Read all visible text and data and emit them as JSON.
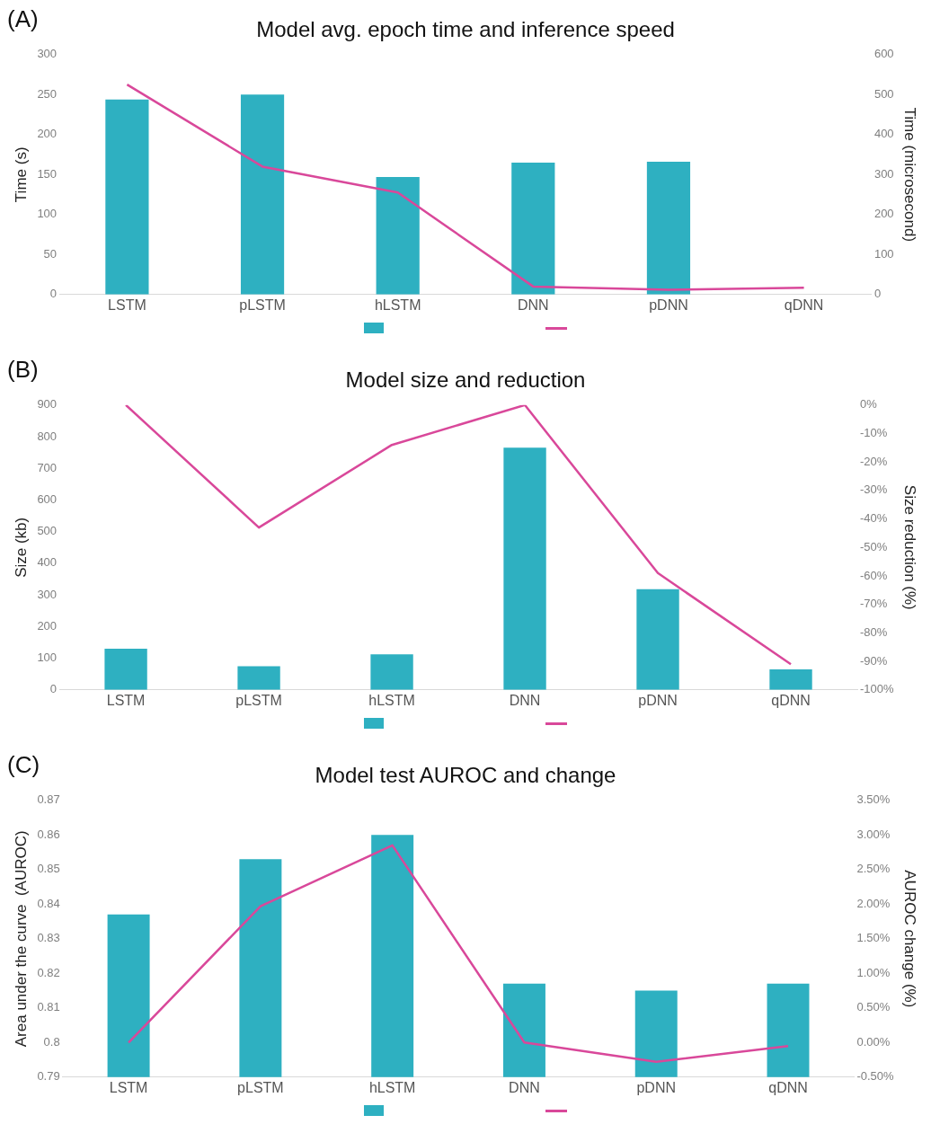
{
  "chart_data": [
    {
      "type": "bar",
      "title": "Model avg. epoch time and inference speed",
      "annotations": [
        "(A)"
      ],
      "ylabel": "Time (s)",
      "y2label": "Time (microsecond)",
      "categories": [
        "LSTM",
        "pLSTM",
        "hLSTM",
        "DNN",
        "pDNN",
        "qDNN"
      ],
      "series": [
        {
          "color": "#2eb0c1",
          "values": [
            244,
            250,
            147,
            165,
            166,
            null
          ]
        },
        {
          "type": "line",
          "axis": "y2",
          "color": "#d9489a",
          "values": [
            525,
            320,
            255,
            20,
            12,
            17
          ]
        }
      ],
      "ylim": [
        0,
        300
      ],
      "yticks": [
        0,
        50,
        100,
        150,
        200,
        250,
        300
      ],
      "y2lim": [
        0,
        600
      ],
      "y2ticks": [
        0,
        100,
        200,
        300,
        400,
        500,
        600
      ],
      "grid": false,
      "marker": "none",
      "line_style": "solid"
    },
    {
      "type": "bar",
      "title": "Model size and reduction",
      "annotations": [
        "(B)"
      ],
      "ylabel": "Size (kb)",
      "y2label": "Size reduction (%)",
      "categories": [
        "LSTM",
        "pLSTM",
        "hLSTM",
        "DNN",
        "pDNN",
        "qDNN"
      ],
      "series": [
        {
          "color": "#2eb0c1",
          "values": [
            130,
            75,
            112,
            765,
            318,
            65
          ]
        },
        {
          "type": "line",
          "axis": "y2",
          "color": "#d9489a",
          "values": [
            0,
            -43,
            -14,
            0,
            -59,
            -91
          ]
        }
      ],
      "ylim": [
        0,
        900
      ],
      "yticks": [
        0,
        100,
        200,
        300,
        400,
        500,
        600,
        700,
        800,
        900
      ],
      "y2lim": [
        -100,
        0
      ],
      "y2ticks": [
        {
          "value": -100,
          "label": "-100%"
        },
        {
          "value": -90,
          "label": "-90%"
        },
        {
          "value": -80,
          "label": "-80%"
        },
        {
          "value": -70,
          "label": "-70%"
        },
        {
          "value": -60,
          "label": "-60%"
        },
        {
          "value": -50,
          "label": "-50%"
        },
        {
          "value": -40,
          "label": "-40%"
        },
        {
          "value": -30,
          "label": "-30%"
        },
        {
          "value": -20,
          "label": "-20%"
        },
        {
          "value": -10,
          "label": "-10%"
        },
        {
          "value": 0,
          "label": "0%"
        }
      ],
      "grid": false,
      "marker": "none",
      "line_style": "solid"
    },
    {
      "type": "bar",
      "title": "Model test AUROC and change",
      "annotations": [
        "(C)"
      ],
      "ylabel": "Area under the curve  (AUROC)",
      "y2label": "AUROC change (%)",
      "categories": [
        "LSTM",
        "pLSTM",
        "hLSTM",
        "DNN",
        "pDNN",
        "qDNN"
      ],
      "series": [
        {
          "color": "#2eb0c1",
          "values": [
            0.837,
            0.853,
            0.86,
            0.817,
            0.815,
            0.817
          ]
        },
        {
          "type": "line",
          "axis": "y2",
          "color": "#d9489a",
          "values": [
            0,
            1.97,
            2.85,
            0,
            -0.28,
            -0.05
          ]
        }
      ],
      "ylim": [
        0.79,
        0.87
      ],
      "yticks": [
        0.79,
        0.8,
        0.81,
        0.82,
        0.83,
        0.84,
        0.85,
        0.86,
        0.87
      ],
      "y2lim": [
        -0.5,
        3.5
      ],
      "y2ticks": [
        {
          "value": -0.5,
          "label": "-0.50%"
        },
        {
          "value": 0,
          "label": "0.00%"
        },
        {
          "value": 0.5,
          "label": "0.50%"
        },
        {
          "value": 1,
          "label": "1.00%"
        },
        {
          "value": 1.5,
          "label": "1.50%"
        },
        {
          "value": 2,
          "label": "2.00%"
        },
        {
          "value": 2.5,
          "label": "2.50%"
        },
        {
          "value": 3,
          "label": "3.00%"
        },
        {
          "value": 3.5,
          "label": "3.50%"
        }
      ],
      "grid": false,
      "marker": "none",
      "line_style": "solid"
    }
  ]
}
